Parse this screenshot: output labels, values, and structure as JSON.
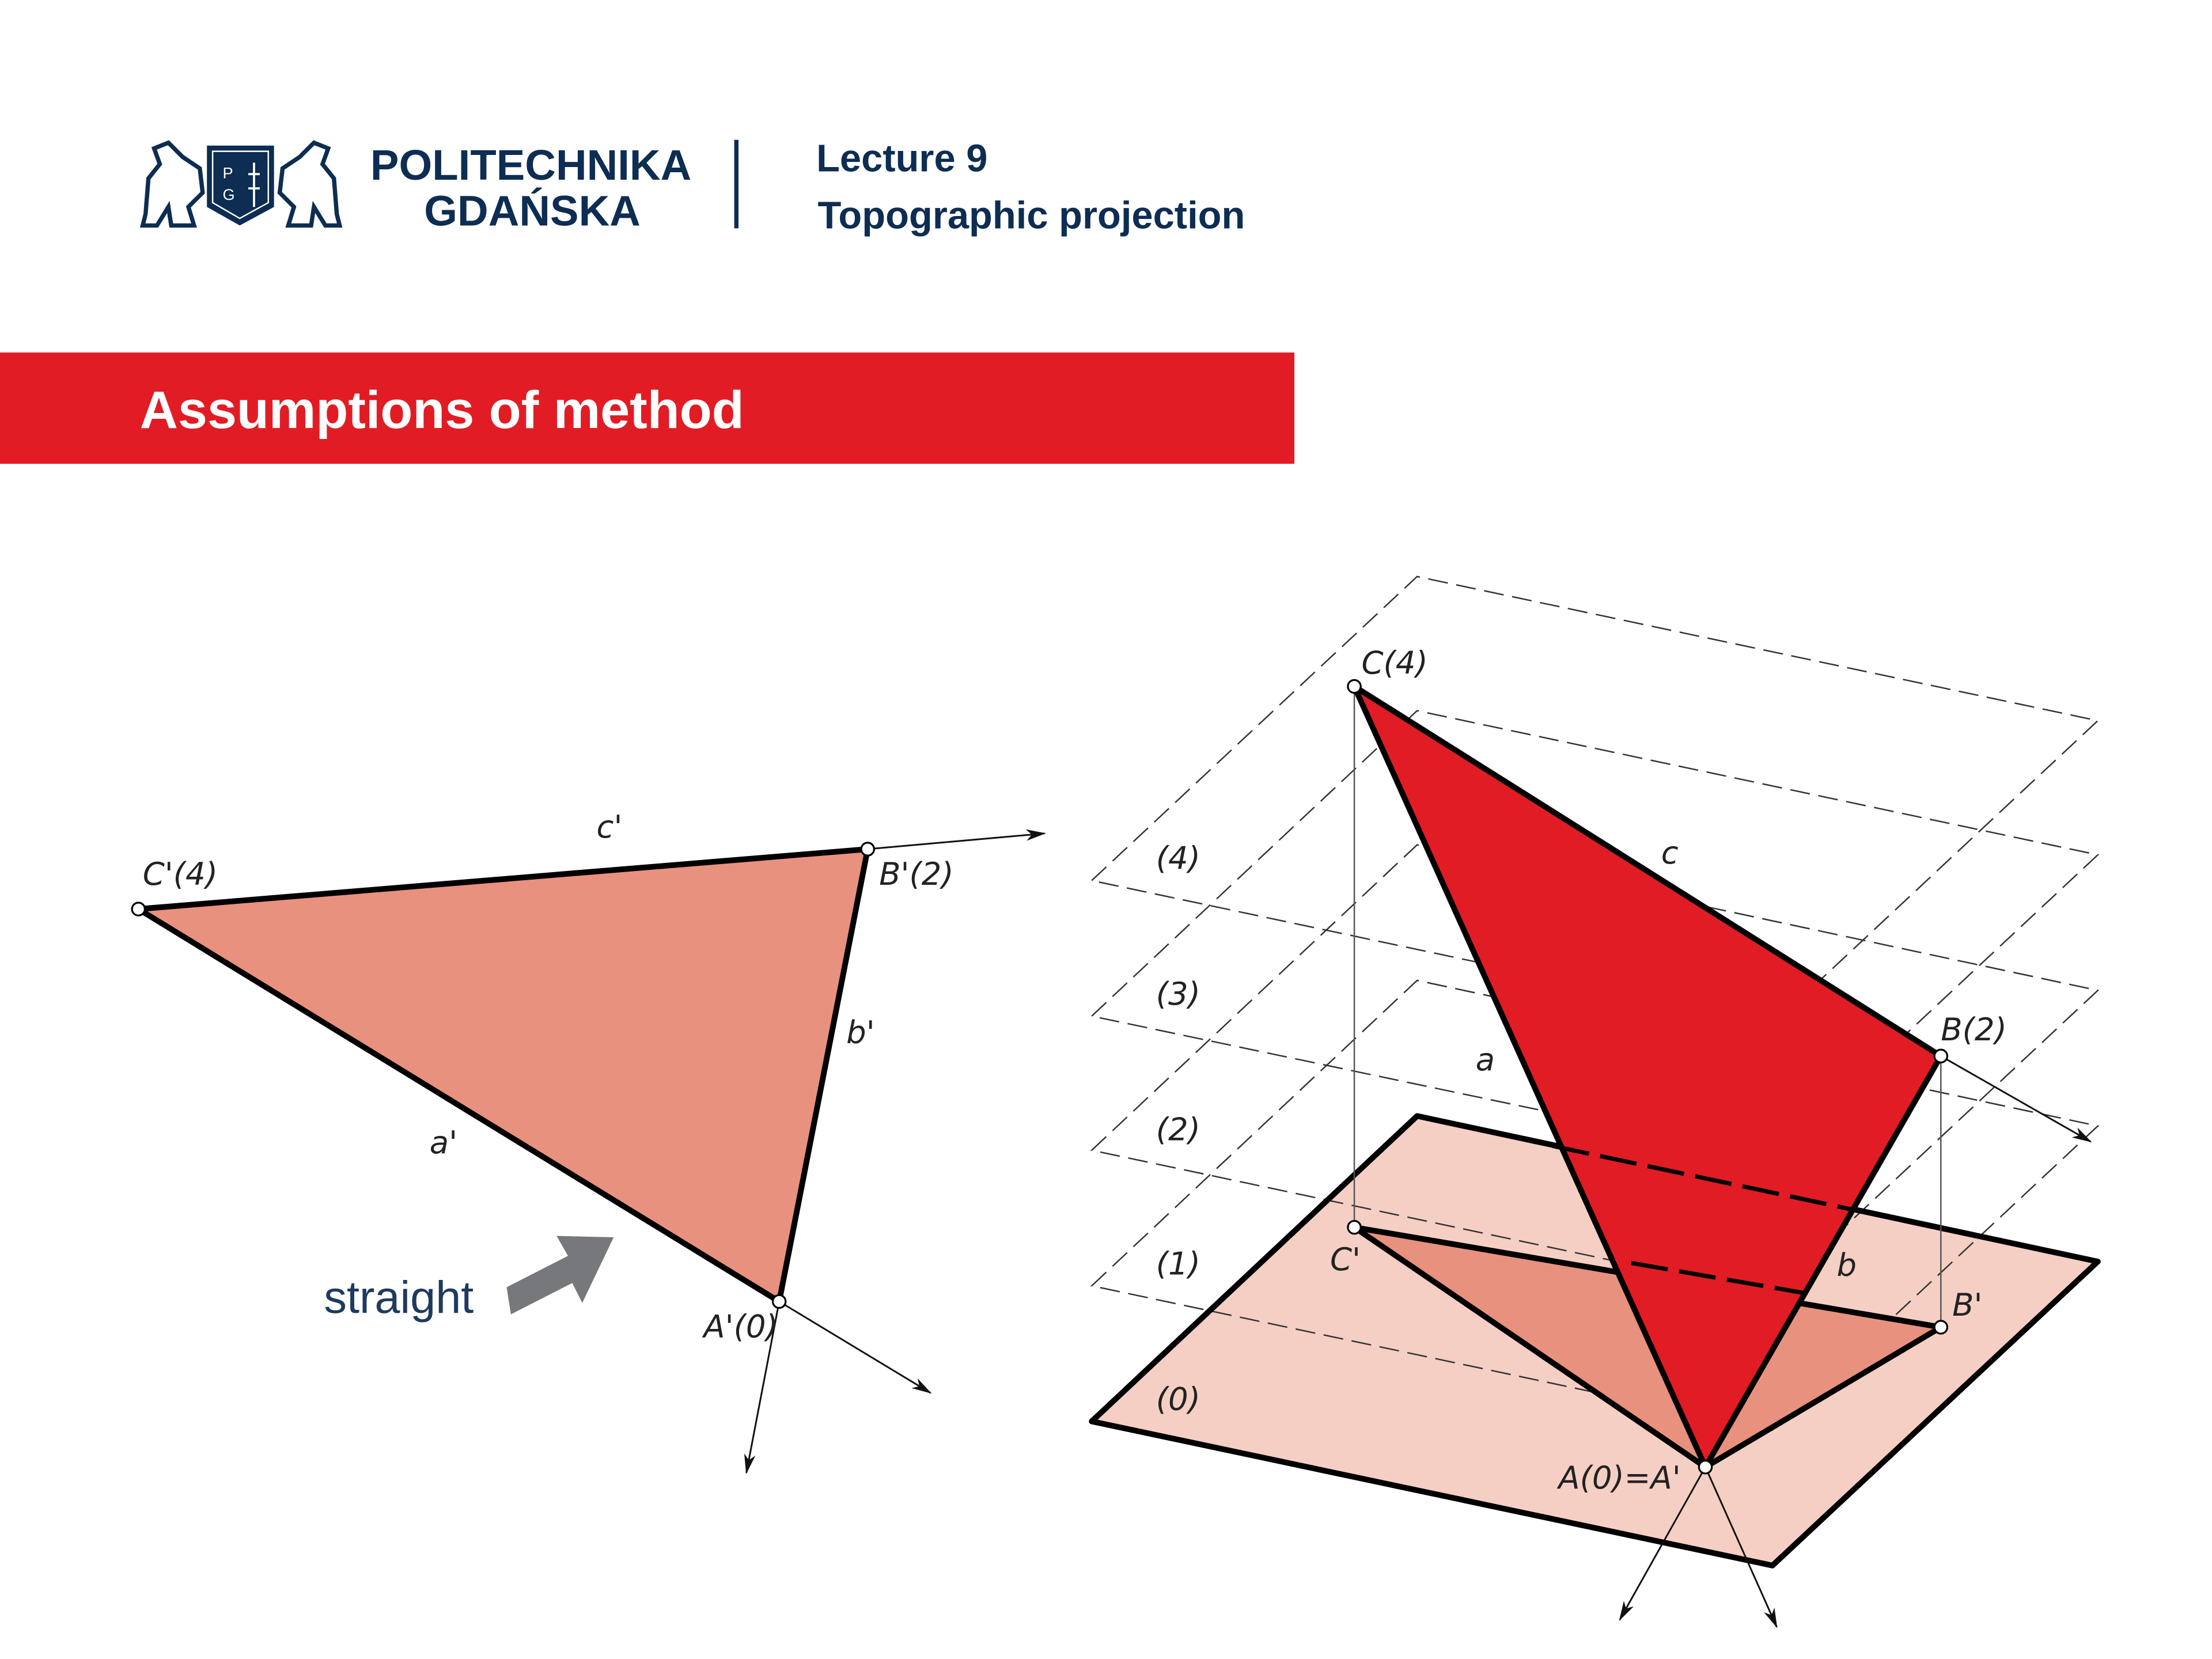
{
  "header": {
    "university_line1": "POLITECHNIKA",
    "university_line2": "GDAŃSKA",
    "logo_letters": [
      "P",
      "G"
    ],
    "lecture": "Lecture 9",
    "topic": "Topographic projection"
  },
  "banner": {
    "title": "Assumptions of method",
    "color": "#e21c24"
  },
  "left_figure": {
    "labels": {
      "C": "C'(4)",
      "B": "B'(2)",
      "A": "A'(0)",
      "a": "a'",
      "b": "b'",
      "c": "c'"
    },
    "fill": "#e8917f",
    "note": "straight",
    "note_arrow": "arrow-icon"
  },
  "right_figure": {
    "levels": [
      "(0)",
      "(1)",
      "(2)",
      "(3)",
      "(4)"
    ],
    "labels": {
      "C": "C(4)",
      "B": "B(2)",
      "A": "A(0)=A'",
      "C_proj": "C'",
      "B_proj": "B'",
      "a": "a",
      "b": "b",
      "c": "c"
    },
    "triangle_color": "#e21c24",
    "projection_color": "#e8917f",
    "plane_color": "#f5cfc4"
  }
}
